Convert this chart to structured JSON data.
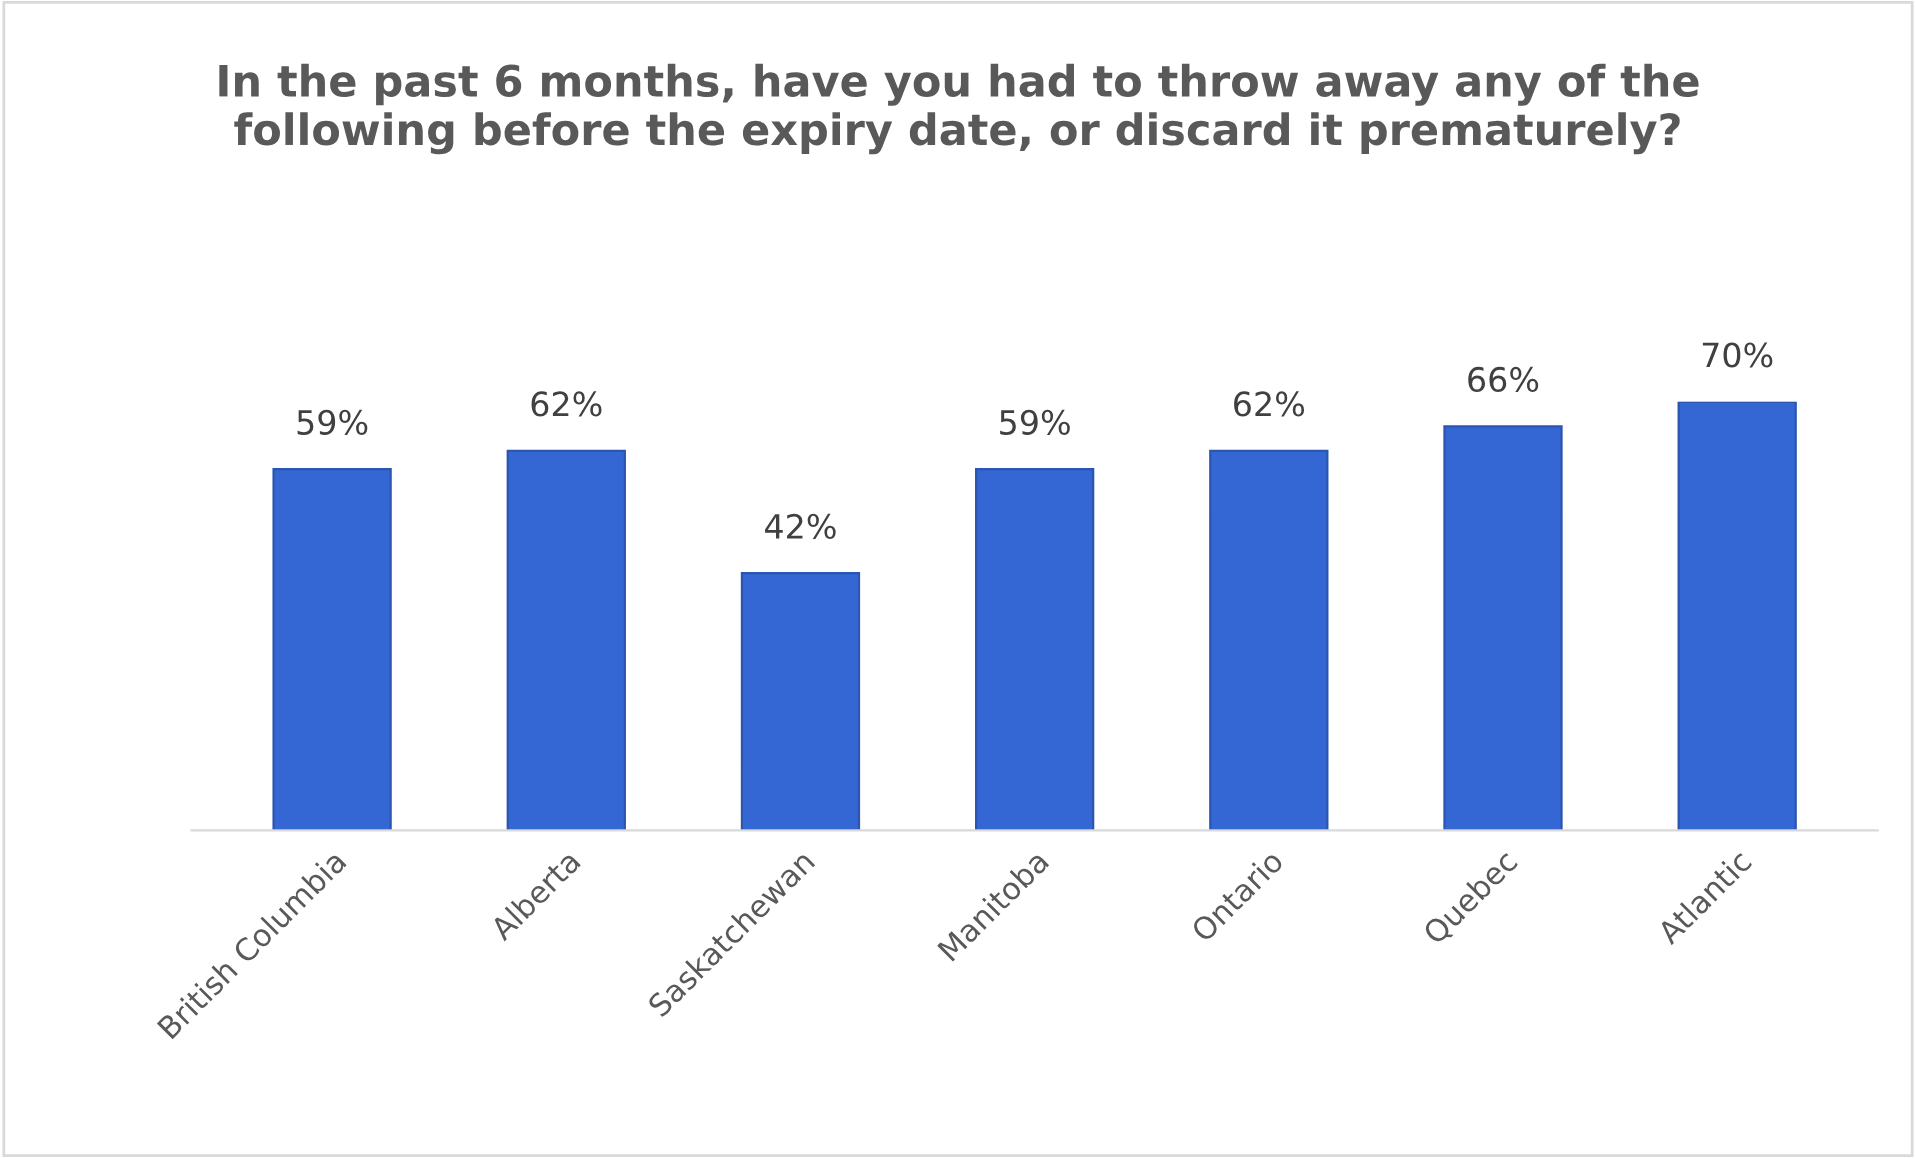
{
  "chart_data": {
    "type": "bar",
    "title": "In the past 6 months, have you had to throw away any of the following before the expiry date, or discard it prematurely?",
    "categories": [
      "British Columbia",
      "Alberta",
      "Saskatchewan",
      "Manitoba",
      "Ontario",
      "Quebec",
      "Atlantic"
    ],
    "values": [
      59,
      62,
      42,
      59,
      62,
      66,
      70
    ],
    "value_labels": [
      "59%",
      "62%",
      "42%",
      "59%",
      "62%",
      "66%",
      "70%"
    ],
    "color": "#3467d4",
    "grid": false,
    "legend": false,
    "tick_labels": "x"
  }
}
